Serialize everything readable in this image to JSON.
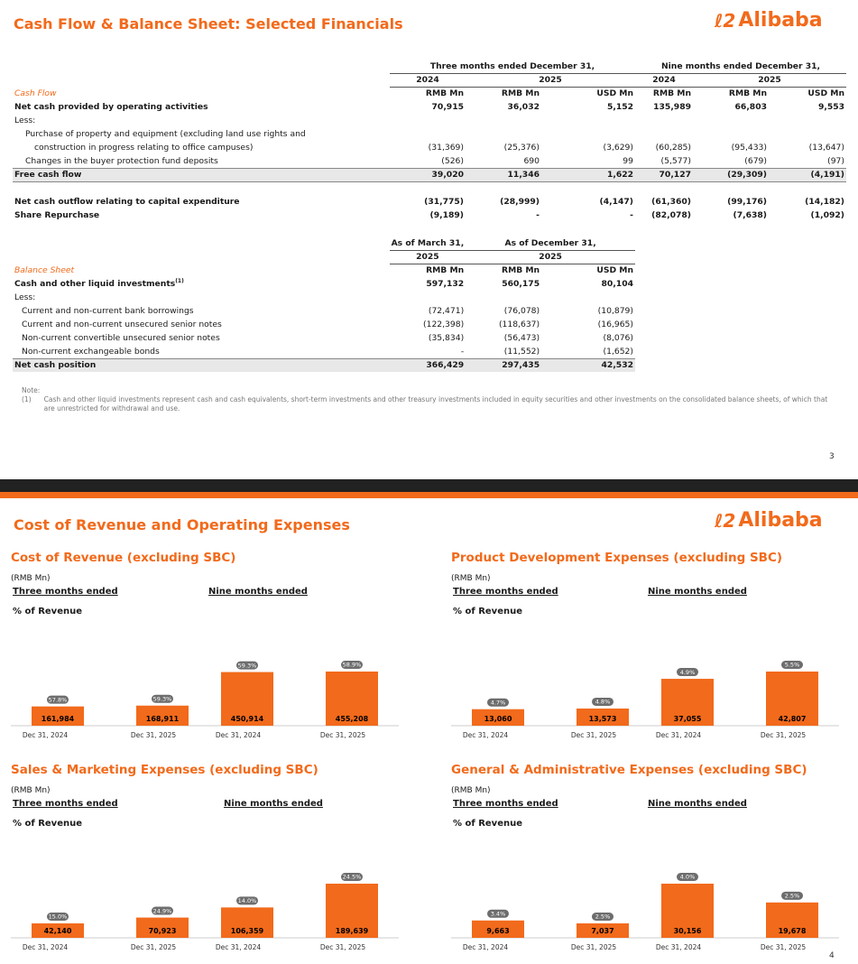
{
  "slide1": {
    "title": "Cash Flow & Balance Sheet: Selected Financials",
    "logo": "Alibaba",
    "page_number": "3",
    "cashflow": {
      "group_headers": [
        "Three months ended December 31,",
        "Nine months ended December 31,"
      ],
      "years": [
        "2024",
        "2025",
        "2024",
        "2025"
      ],
      "units": [
        "RMB Mn",
        "RMB Mn",
        "USD Mn",
        "RMB Mn",
        "RMB Mn",
        "USD Mn"
      ],
      "section_label": "Cash Flow",
      "rows": [
        {
          "label": "Net cash provided by operating activities",
          "bold": true,
          "values": [
            "70,915",
            "36,032",
            "5,152",
            "135,989",
            "66,803",
            "9,553"
          ]
        },
        {
          "label": "Less:",
          "values": [
            "",
            "",
            "",
            "",
            "",
            ""
          ]
        },
        {
          "label": "Purchase of property and equipment (excluding land use rights and",
          "indent": 1,
          "values": [
            "",
            "",
            "",
            "",
            "",
            ""
          ]
        },
        {
          "label": "construction in progress relating to office campuses)",
          "indent": 2,
          "values": [
            "(31,369)",
            "(25,376)",
            "(3,629)",
            "(60,285)",
            "(95,433)",
            "(13,647)"
          ]
        },
        {
          "label": "Changes in the buyer protection fund deposits",
          "indent": 1,
          "values": [
            "(526)",
            "690",
            "99",
            "(5,577)",
            "(679)",
            "(97)"
          ]
        },
        {
          "label": "Free cash flow",
          "bold": true,
          "shade": true,
          "values": [
            "39,020",
            "11,346",
            "1,622",
            "70,127",
            "(29,309)",
            "(4,191)"
          ]
        }
      ],
      "rows2": [
        {
          "label": "Net cash outflow relating to capital expenditure",
          "bold": true,
          "values": [
            "(31,775)",
            "(28,999)",
            "(4,147)",
            "(61,360)",
            "(99,176)",
            "(14,182)"
          ]
        },
        {
          "label": "Share Repurchase",
          "bold": true,
          "values": [
            "(9,189)",
            "-",
            "-",
            "(82,078)",
            "(7,638)",
            "(1,092)"
          ]
        }
      ]
    },
    "balance": {
      "group_headers": [
        "As of March 31,",
        "As of December 31,"
      ],
      "years": [
        "2025",
        "2025"
      ],
      "units": [
        "RMB Mn",
        "RMB Mn",
        "USD Mn"
      ],
      "section_label": "Balance Sheet",
      "first_label": "Cash and other liquid investments",
      "first_sup": "(1)",
      "first_values": [
        "597,132",
        "560,175",
        "80,104"
      ],
      "less_label": "Less:",
      "rows": [
        {
          "label": "Current and non-current bank borrowings",
          "values": [
            "(72,471)",
            "(76,078)",
            "(10,879)"
          ]
        },
        {
          "label": "Current and non-current unsecured senior notes",
          "values": [
            "(122,398)",
            "(118,637)",
            "(16,965)"
          ]
        },
        {
          "label": "Non-current convertible unsecured senior notes",
          "values": [
            "(35,834)",
            "(56,473)",
            "(8,076)"
          ]
        },
        {
          "label": "Non-current exchangeable bonds",
          "values": [
            "-",
            "(11,552)",
            "(1,652)"
          ]
        }
      ],
      "total": {
        "label": "Net cash position",
        "values": [
          "366,429",
          "297,435",
          "42,532"
        ]
      }
    },
    "note": {
      "heading": "Note:",
      "marker": "(1)",
      "text": "Cash and other liquid investments represent cash and cash equivalents, short-term investments and other treasury investments included in equity securities and other investments on the consolidated balance sheets, of which that are unrestricted for withdrawal and use."
    }
  },
  "slide2": {
    "title": "Cost of Revenue and Operating Expenses",
    "logo": "Alibaba",
    "page_number": "4",
    "colors": {
      "bar": "#f26a1b",
      "pill": "#6d6d6d",
      "accent": "#f26a1b"
    },
    "panels": [
      {
        "title": "Cost of Revenue (excluding SBC)",
        "unit": "(RMB Mn)",
        "three": "Three months ended",
        "nine": "Nine months ended",
        "pct_label": "% of Revenue",
        "bars": [
          {
            "x": "Dec 31, 2024",
            "value": 161984,
            "label": "161,984",
            "pct": "57.8%"
          },
          {
            "x": "Dec 31, 2025",
            "value": 168911,
            "label": "168,911",
            "pct": "59.3%"
          },
          {
            "x": "Dec 31, 2024",
            "value": 450914,
            "label": "450,914",
            "pct": "59.3%"
          },
          {
            "x": "Dec 31, 2025",
            "value": 455208,
            "label": "455,208",
            "pct": "58.9%"
          }
        ]
      },
      {
        "title": "Product Development Expenses (excluding SBC)",
        "unit": "(RMB Mn)",
        "three": "Three months ended",
        "nine": "Nine months ended",
        "pct_label": "% of Revenue",
        "bars": [
          {
            "x": "Dec 31, 2024",
            "value": 13060,
            "label": "13,060",
            "pct": "4.7%"
          },
          {
            "x": "Dec 31, 2025",
            "value": 13573,
            "label": "13,573",
            "pct": "4.8%"
          },
          {
            "x": "Dec 31, 2024",
            "value": 37055,
            "label": "37,055",
            "pct": "4.9%"
          },
          {
            "x": "Dec 31, 2025",
            "value": 42807,
            "label": "42,807",
            "pct": "5.5%"
          }
        ]
      },
      {
        "title": "Sales & Marketing Expenses (excluding SBC)",
        "unit": "(RMB Mn)",
        "three": "Three months ended",
        "nine": "Nine months ended",
        "pct_label": "% of Revenue",
        "bars": [
          {
            "x": "Dec 31, 2024",
            "value": 42140,
            "label": "42,140",
            "pct": "15.0%"
          },
          {
            "x": "Dec 31, 2025",
            "value": 70923,
            "label": "70,923",
            "pct": "24.9%"
          },
          {
            "x": "Dec 31, 2024",
            "value": 106359,
            "label": "106,359",
            "pct": "14.0%"
          },
          {
            "x": "Dec 31, 2025",
            "value": 189639,
            "label": "189,639",
            "pct": "24.5%"
          }
        ]
      },
      {
        "title": "General & Administrative Expenses (excluding SBC)",
        "unit": "(RMB Mn)",
        "three": "Three months ended",
        "nine": "Nine months ended",
        "pct_label": "% of Revenue",
        "bars": [
          {
            "x": "Dec 31, 2024",
            "value": 9663,
            "label": "9,663",
            "pct": "3.4%"
          },
          {
            "x": "Dec 31, 2025",
            "value": 7037,
            "label": "7,037",
            "pct": "2.5%"
          },
          {
            "x": "Dec 31, 2024",
            "value": 30156,
            "label": "30,156",
            "pct": "4.0%"
          },
          {
            "x": "Dec 31, 2025",
            "value": 19678,
            "label": "19,678",
            "pct": "2.5%"
          }
        ]
      }
    ]
  }
}
